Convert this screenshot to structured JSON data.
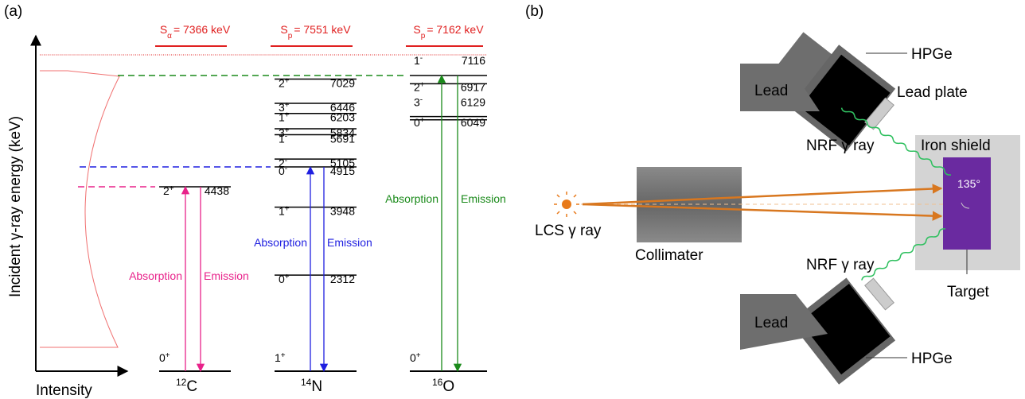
{
  "panel_a": {
    "label": "(a)",
    "y_axis_label": "Incident γ-ray energy (keV)",
    "x_axis_label": "Intensity",
    "nuclei": [
      {
        "mass": "12",
        "symbol": "C",
        "color": "#e8228a",
        "threshold": {
          "s": "S",
          "sub": "α",
          "text": "= 7366 keV"
        },
        "ground": {
          "spin": "0",
          "parity": "+"
        },
        "levels": [
          {
            "spin": "2",
            "parity": "+",
            "energy": 4438
          }
        ],
        "absorption": "Absorption",
        "emission": "Emission"
      },
      {
        "mass": "14",
        "symbol": "N",
        "color": "#1f1fe0",
        "threshold": {
          "s": "S",
          "sub": "p",
          "text": "= 7551 keV"
        },
        "ground": {
          "spin": "1",
          "parity": "+"
        },
        "levels": [
          {
            "spin": "2",
            "parity": "+",
            "energy": 7029
          },
          {
            "spin": "3",
            "parity": "+",
            "energy": 6446
          },
          {
            "spin": "1",
            "parity": "+",
            "energy": 6203
          },
          {
            "spin": "3",
            "parity": "+",
            "energy": 5834
          },
          {
            "spin": "1",
            "parity": "-",
            "energy": 5691
          },
          {
            "spin": "2",
            "parity": "-",
            "energy": 5105
          },
          {
            "spin": "0",
            "parity": "-",
            "energy": 4915
          },
          {
            "spin": "1",
            "parity": "+",
            "energy": 3948
          },
          {
            "spin": "0",
            "parity": "+",
            "energy": 2312
          }
        ],
        "absorption": "Absorption",
        "emission": "Emission"
      },
      {
        "mass": "16",
        "symbol": "O",
        "color": "#1a8a1a",
        "threshold": {
          "s": "S",
          "sub": "p",
          "text": "= 7162 keV"
        },
        "ground": {
          "spin": "0",
          "parity": "+"
        },
        "levels": [
          {
            "spin": "1",
            "parity": "-",
            "energy": 7116
          },
          {
            "spin": "2",
            "parity": "+",
            "energy": 6917
          },
          {
            "spin": "3",
            "parity": "-",
            "energy": 6129
          },
          {
            "spin": "0",
            "parity": "+",
            "energy": 6049
          }
        ],
        "absorption": "Absorption",
        "emission": "Emission"
      }
    ]
  },
  "panel_b": {
    "label": "(b)",
    "hpge_top": "HPGe",
    "lead_top": "Lead",
    "lead_plate": "Lead plate",
    "nrf_top": "NRF γ ray",
    "iron_shield": "Iron shield",
    "angle": "135°",
    "lcs": "LCS γ ray",
    "collimator": "Collimater",
    "nrf_bottom": "NRF γ ray",
    "target": "Target",
    "lead_bottom": "Lead",
    "hpge_bottom": "HPGe"
  }
}
